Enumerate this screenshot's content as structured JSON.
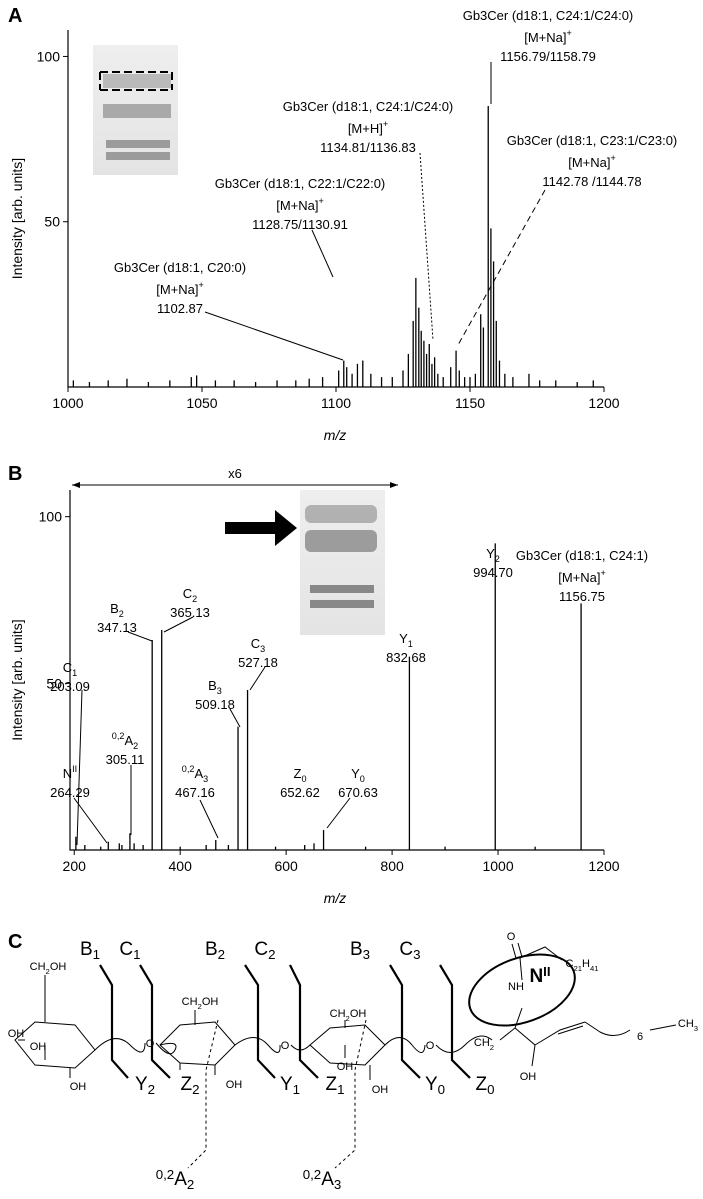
{
  "chart_data": [
    {
      "type": "stem",
      "panel_label": "A",
      "x_label": "m/z",
      "y_label": "Intensity [arb. units]",
      "xlim": [
        1000,
        1200
      ],
      "ylim": [
        0,
        108
      ],
      "xticks": [
        1000,
        1050,
        1100,
        1150,
        1200
      ],
      "yticks": [
        50,
        100
      ],
      "color": "#000000",
      "x": [
        1002,
        1008,
        1015,
        1022,
        1030,
        1038,
        1046,
        1048,
        1055,
        1062,
        1070,
        1078,
        1085,
        1090,
        1095,
        1101,
        1102.9,
        1104,
        1106,
        1108,
        1110,
        1113,
        1117,
        1121,
        1125,
        1127,
        1128.8,
        1129.8,
        1130.9,
        1131.8,
        1132.8,
        1133.8,
        1134.8,
        1135.8,
        1136.8,
        1138,
        1140,
        1142.8,
        1144.8,
        1146,
        1148,
        1150,
        1152,
        1154,
        1155,
        1156.8,
        1157.8,
        1158.8,
        1159.8,
        1161,
        1163,
        1166,
        1172,
        1176,
        1182,
        1190,
        1196
      ],
      "values": [
        2,
        1.5,
        2,
        2.5,
        1.5,
        2,
        3,
        3.5,
        2,
        2,
        1.5,
        2,
        2,
        2.5,
        3,
        5,
        8,
        6,
        4,
        7,
        8,
        4,
        3,
        3,
        5,
        10,
        20,
        33,
        24,
        17,
        14,
        10,
        13,
        7,
        9,
        4,
        3,
        6,
        11,
        5,
        3,
        3,
        4,
        22,
        18,
        85,
        48,
        38,
        20,
        8,
        4,
        3,
        4,
        2,
        2,
        1.5,
        2
      ],
      "annotations": [
        {
          "name": "Gb3Cer (d18:1, C20:0)",
          "ion": "[M+Na]",
          "charge": "+",
          "mz": "1102.87"
        },
        {
          "name": "Gb3Cer (d18:1, C22:1/C22:0)",
          "ion": "[M+Na]",
          "charge": "+",
          "mz": "1128.75/1130.91"
        },
        {
          "name": "Gb3Cer (d18:1, C24:1/C24:0)",
          "ion": "[M+H]",
          "charge": "+",
          "mz": "1134.81/1136.83"
        },
        {
          "name": "Gb3Cer (d18:1, C24:1/C24:0)",
          "ion": "[M+Na]",
          "charge": "+",
          "mz": "1156.79/1158.79"
        },
        {
          "name": "Gb3Cer (d18:1, C23:1/C23:0)",
          "ion": "[M+Na]",
          "charge": "+",
          "mz": "1142.78 /1144.78"
        }
      ]
    },
    {
      "type": "stem",
      "panel_label": "B",
      "x_label": "m/z",
      "y_label": "Intensity [arb. units]",
      "scale_note": "x6",
      "xlim": [
        192,
        1200
      ],
      "ylim": [
        0,
        108
      ],
      "xticks": [
        200,
        400,
        600,
        800,
        1000,
        1200
      ],
      "yticks": [
        50,
        100
      ],
      "color": "#000000",
      "x": [
        203.09,
        220,
        250,
        264.29,
        285,
        290,
        305.11,
        313,
        330,
        347.13,
        365.13,
        400,
        449,
        467.16,
        491,
        509.18,
        527.18,
        580,
        635,
        652.62,
        670.63,
        750,
        832.68,
        900,
        994.7,
        1070,
        1156.75
      ],
      "values": [
        4,
        1.5,
        1,
        2.5,
        2,
        1.5,
        5,
        2,
        1.5,
        63,
        66,
        1,
        1.5,
        3,
        1.5,
        37,
        48,
        1,
        1.5,
        2,
        6,
        1,
        58,
        1,
        92,
        1,
        74
      ],
      "annotations": [
        {
          "ion": "C",
          "sub": "1",
          "mz": "203.09"
        },
        {
          "ion": "N",
          "sup": "II",
          "mz": "264.29"
        },
        {
          "pre": "0,2",
          "ion": "A",
          "sub": "2",
          "mz": "305.11"
        },
        {
          "ion": "B",
          "sub": "2",
          "mz": "347.13"
        },
        {
          "ion": "C",
          "sub": "2",
          "mz": "365.13"
        },
        {
          "pre": "0,2",
          "ion": "A",
          "sub": "3",
          "mz": "467.16"
        },
        {
          "ion": "B",
          "sub": "3",
          "mz": "509.18"
        },
        {
          "ion": "C",
          "sub": "3",
          "mz": "527.18"
        },
        {
          "ion": "Z",
          "sub": "0",
          "mz": "652.62"
        },
        {
          "ion": "Y",
          "sub": "0",
          "mz": "670.63"
        },
        {
          "ion": "Y",
          "sub": "1",
          "mz": "832.68"
        },
        {
          "ion": "Y",
          "sub": "2",
          "mz": "994.70"
        },
        {
          "name": "Gb3Cer (d18:1, C24:1)",
          "ion": "[M+Na]",
          "charge": "+",
          "mz": "1156.75"
        }
      ]
    }
  ],
  "diagram": {
    "panel_label": "C",
    "fragments": [
      {
        "ion": "B",
        "sub": "1"
      },
      {
        "ion": "C",
        "sub": "1"
      },
      {
        "ion": "B",
        "sub": "2"
      },
      {
        "ion": "C",
        "sub": "2"
      },
      {
        "ion": "B",
        "sub": "3"
      },
      {
        "ion": "C",
        "sub": "3"
      },
      {
        "ion": "Y",
        "sub": "2"
      },
      {
        "ion": "Z",
        "sub": "2"
      },
      {
        "ion": "Y",
        "sub": "1"
      },
      {
        "ion": "Z",
        "sub": "1"
      },
      {
        "ion": "Y",
        "sub": "0"
      },
      {
        "ion": "Z",
        "sub": "0"
      },
      {
        "pre": "0,2",
        "ion": "A",
        "sub": "2"
      },
      {
        "pre": "0,2",
        "ion": "A",
        "sub": "3"
      },
      {
        "ion": "N",
        "sup": "II"
      }
    ],
    "atoms": [
      {
        "parts": [
          "CH",
          "2",
          "OH"
        ]
      },
      {
        "parts": [
          "OH"
        ]
      },
      {
        "parts": [
          "OH"
        ]
      },
      {
        "parts": [
          "OH"
        ]
      },
      {
        "parts": [
          "O"
        ]
      },
      {
        "parts": [
          "CH",
          "2",
          "OH"
        ]
      },
      {
        "parts": [
          "OH"
        ]
      },
      {
        "parts": [
          "O"
        ]
      },
      {
        "parts": [
          "CH",
          "2",
          "OH"
        ]
      },
      {
        "parts": [
          "OH"
        ]
      },
      {
        "parts": [
          "OH"
        ]
      },
      {
        "parts": [
          "O"
        ]
      },
      {
        "parts": [
          "O"
        ]
      },
      {
        "parts": [
          "NH"
        ]
      },
      {
        "parts": [
          "CH",
          "2"
        ]
      },
      {
        "parts": [
          "OH"
        ]
      },
      {
        "parts": [
          "C",
          "21",
          "H",
          "41"
        ]
      },
      {
        "parts": [
          "6"
        ]
      },
      {
        "parts": [
          "CH",
          "3"
        ]
      }
    ]
  }
}
